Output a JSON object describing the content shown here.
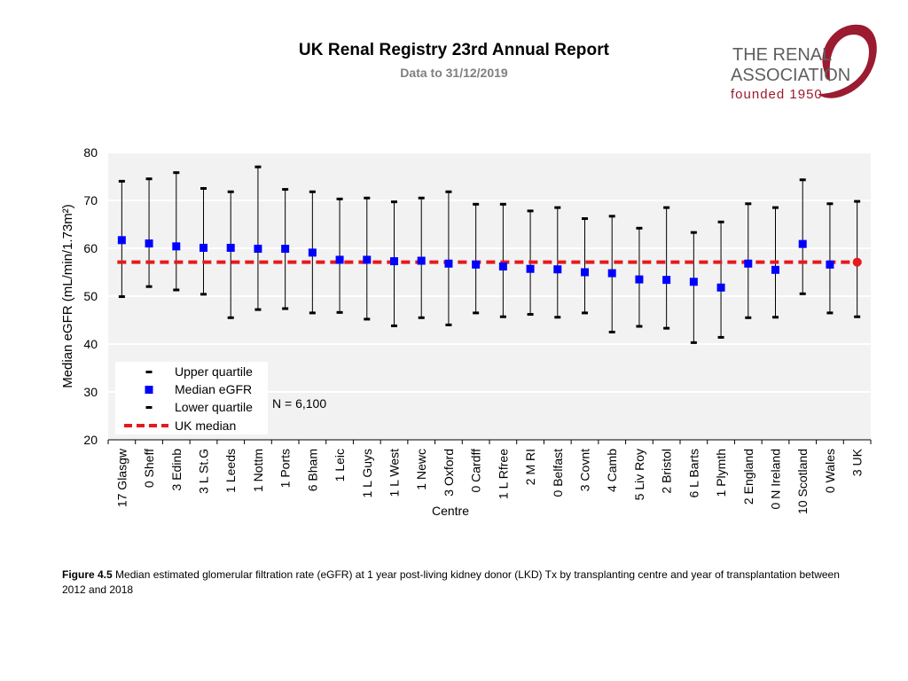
{
  "header": {
    "title": "UK Renal Registry 23rd Annual Report",
    "subtitle": "Data to 31/12/2019"
  },
  "logo": {
    "line1": "THE RENAL",
    "line2": "ASSOCIATION",
    "line3": "founded 1950"
  },
  "colors": {
    "median_marker": "#0000ff",
    "uk_median_line": "#e41a1c",
    "plot_background": "#f2f2f2",
    "gridline": "#ffffff",
    "logo_text": "#5f5f5f",
    "logo_accent": "#9b1b30"
  },
  "caption": {
    "label": "Figure 4.5",
    "text": " Median estimated glomerular filtration rate (eGFR) at 1 year post-living kidney donor (LKD) Tx by transplanting centre and year of transplantation between 2012 and 2018"
  },
  "chart_data": {
    "type": "scatter",
    "title": "",
    "xlabel": "Centre",
    "ylabel": "Median eGFR (mL/min/1.73m²)",
    "ylim": [
      20,
      80
    ],
    "yticks": [
      20,
      30,
      40,
      50,
      60,
      70,
      80
    ],
    "grid": true,
    "uk_median": 57.1,
    "annotation": "N = 6,100",
    "legend": {
      "position": "bottom-left",
      "upper": "Upper quartile",
      "median": "Median eGFR",
      "lower": "Lower quartile",
      "uk": "UK median"
    },
    "categories": [
      "17 Glasgw",
      "0 Sheff",
      "3 Edinb",
      "3 L St.G",
      "1 Leeds",
      "1 Nottm",
      "1 Ports",
      "6 Bham",
      "1 Leic",
      "1 L Guys",
      "1 L West",
      "1 Newc",
      "3 Oxford",
      "0 Cardff",
      "1 L Rfree",
      "2 M RI",
      "0 Belfast",
      "3 Covnt",
      "4 Camb",
      "5 Liv Roy",
      "2 Bristol",
      "6 L Barts",
      "1 Plymth",
      "2 England",
      "0 N Ireland",
      "10 Scotland",
      "0 Wales",
      "3 UK"
    ],
    "series": [
      {
        "name": "Upper quartile",
        "values": [
          74.0,
          74.5,
          75.8,
          72.5,
          71.8,
          77.0,
          72.3,
          71.8,
          70.3,
          70.5,
          69.7,
          70.5,
          71.8,
          69.2,
          69.2,
          67.8,
          68.5,
          66.2,
          66.7,
          64.2,
          68.5,
          63.3,
          65.5,
          69.3,
          68.5,
          74.3,
          69.3,
          69.8
        ]
      },
      {
        "name": "Median eGFR",
        "values": [
          61.7,
          61.0,
          60.4,
          60.1,
          60.1,
          59.9,
          59.9,
          59.1,
          57.6,
          57.6,
          57.3,
          57.4,
          56.8,
          56.6,
          56.2,
          55.7,
          55.6,
          55.0,
          54.8,
          53.5,
          53.4,
          53.0,
          51.8,
          56.8,
          55.5,
          60.9,
          56.6,
          57.1
        ]
      },
      {
        "name": "Lower quartile",
        "values": [
          49.9,
          52.0,
          51.3,
          50.4,
          45.5,
          47.2,
          47.4,
          46.5,
          46.6,
          45.2,
          43.8,
          45.5,
          44.0,
          46.5,
          45.7,
          46.2,
          45.6,
          46.5,
          42.5,
          43.7,
          43.3,
          40.3,
          41.4,
          45.5,
          45.6,
          50.5,
          46.5,
          45.7
        ]
      }
    ]
  }
}
